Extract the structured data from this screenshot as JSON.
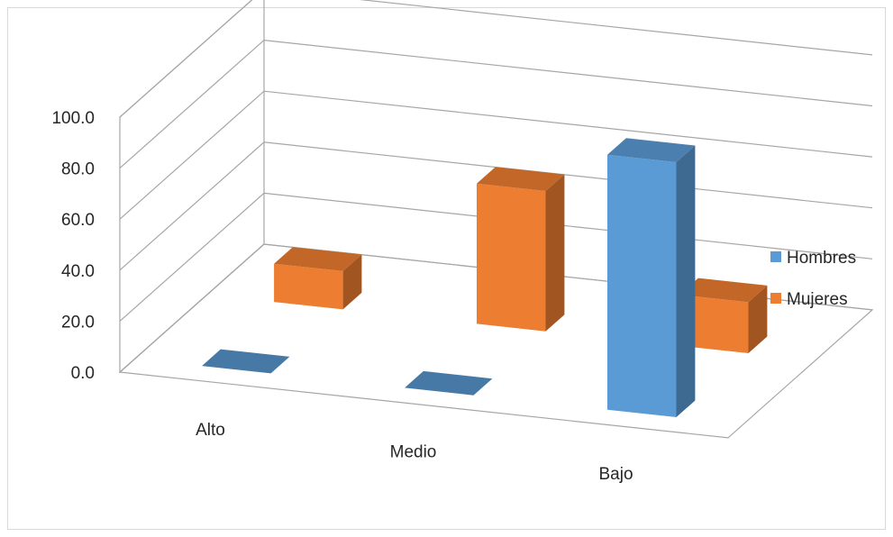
{
  "chart_data": {
    "type": "bar",
    "title": "",
    "xlabel": "",
    "ylabel": "",
    "categories": [
      "Alto",
      "Medio",
      "Bajo"
    ],
    "series": [
      {
        "name": "Hombres",
        "values": [
          0.0,
          0.0,
          100.0
        ],
        "color": "#5b9bd5"
      },
      {
        "name": "Mujeres",
        "values": [
          15.0,
          55.0,
          20.0
        ],
        "color": "#ed7d31"
      }
    ],
    "ylim": [
      0,
      100
    ],
    "ytick_labels": [
      "0.0",
      "20.0",
      "40.0",
      "60.0",
      "80.0",
      "100.0"
    ],
    "grid": true,
    "legend_position": "right",
    "projection": "3d"
  }
}
